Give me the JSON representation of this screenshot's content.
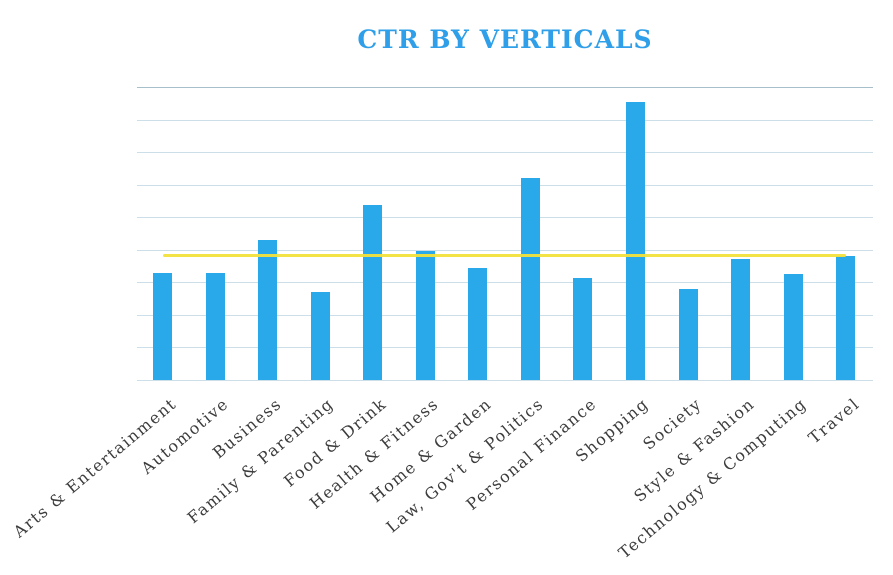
{
  "chart_data": {
    "type": "bar",
    "title": "CTR BY VERTICALS",
    "categories": [
      "Arts & Entertainment",
      "Automotive",
      "Business",
      "Family & Parenting",
      "Food & Drink",
      "Health & Fitness",
      "Home & Garden",
      "Law, Gov't & Politics",
      "Personal Finance",
      "Shopping",
      "Society",
      "Style & Fashion",
      "Technology & Computing",
      "Travel"
    ],
    "values": [
      3.29,
      3.28,
      4.31,
      2.7,
      5.37,
      3.96,
      3.43,
      6.21,
      3.12,
      8.55,
      2.81,
      3.73,
      3.25,
      3.82
    ],
    "values_unit": "gridline-units (y-axis tick labels not shown in chart)",
    "reference_line": {
      "name": "benchmark-line",
      "value": 3.83,
      "color": "#F2E13C"
    },
    "xlabel": "",
    "ylabel": "",
    "y_axis": {
      "min": 0,
      "max": 9,
      "gridline_count": 10,
      "tick_labels_visible": false
    },
    "grid": "horizontal-only",
    "legend": "none",
    "x_label_rotation_deg": -40,
    "colors": {
      "bar": "#29A9E9",
      "reference_line": "#F2E13C",
      "gridline": "#CCDFE9",
      "gridline_top": "#A6BFC9",
      "title": "#2E9FE8",
      "axis_label": "#3C3C3C",
      "background": "#FFFFFF"
    }
  }
}
